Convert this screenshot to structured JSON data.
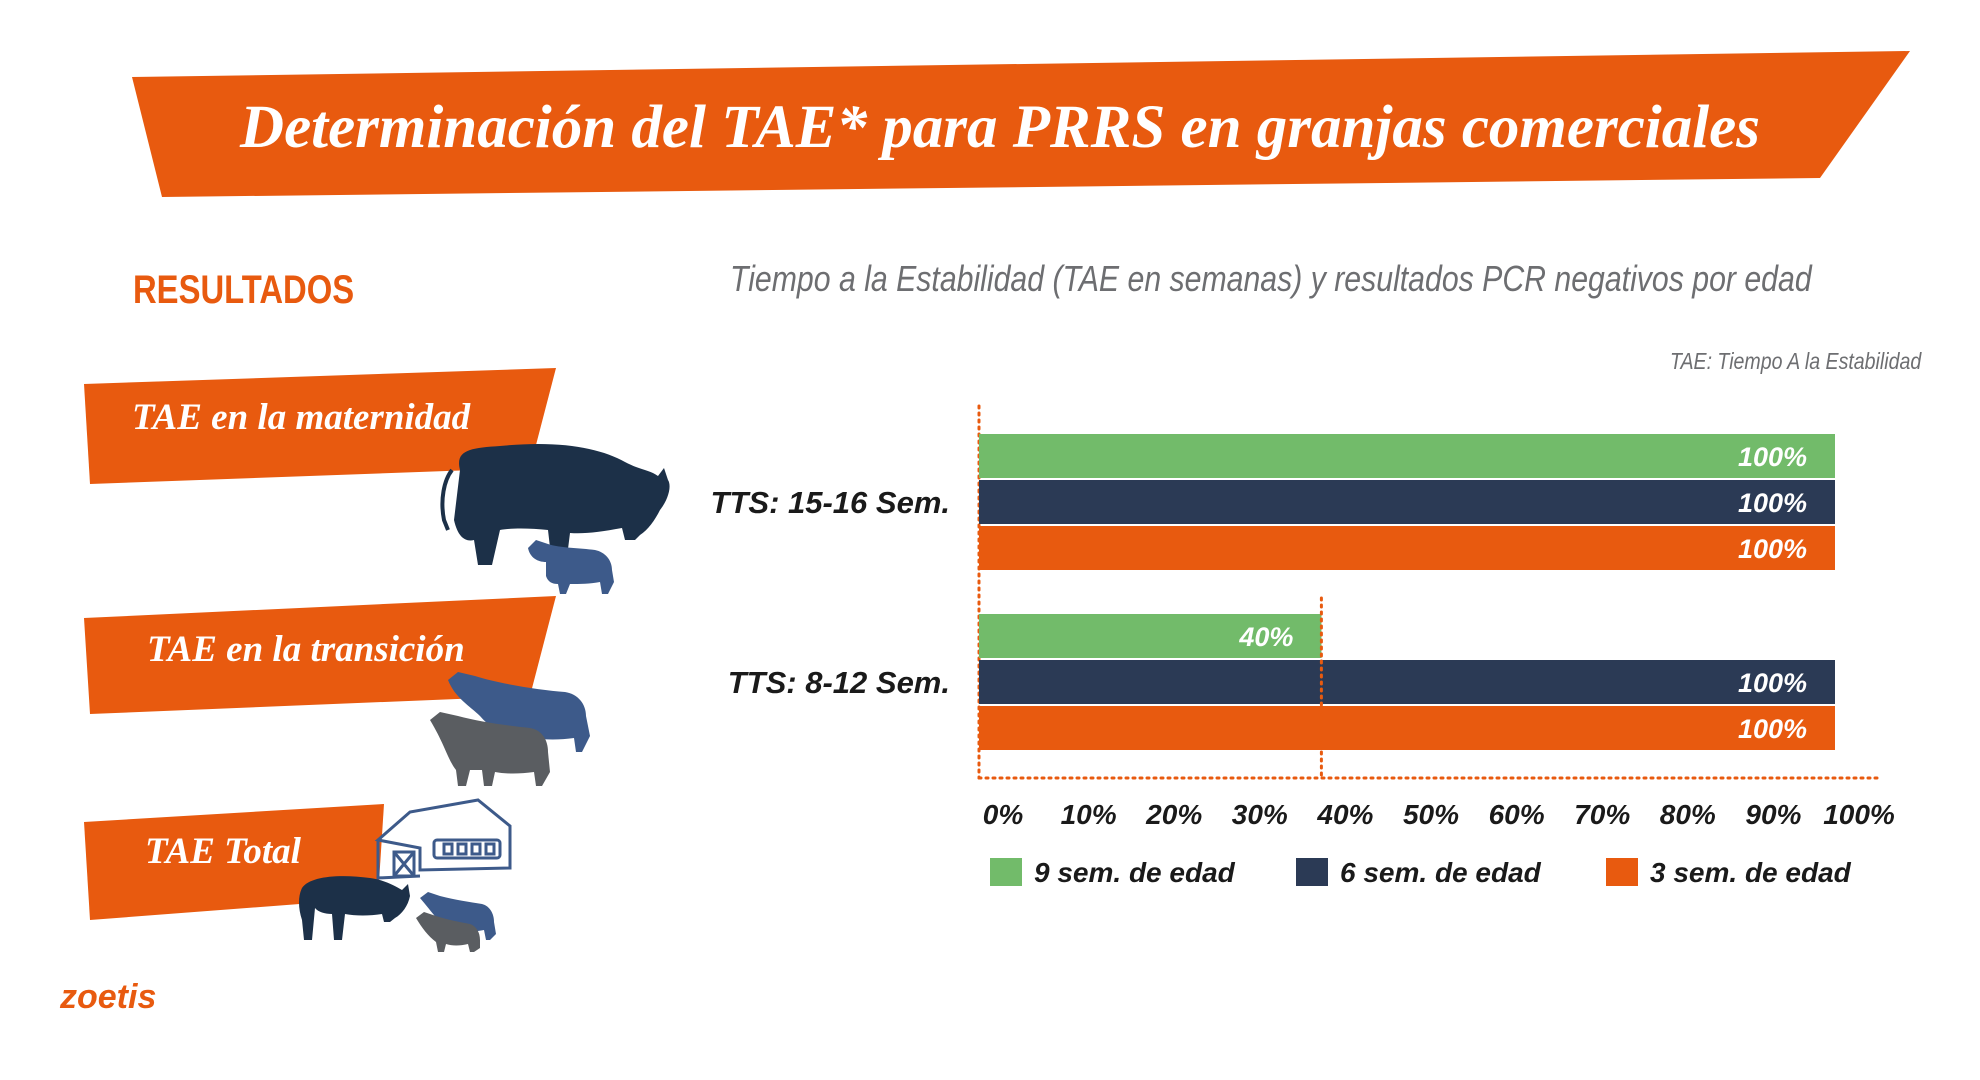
{
  "header": {
    "title": "Determinación del TAE*  para PRRS en granjas comerciales"
  },
  "left_panel": {
    "heading": "RESULTADOS",
    "labels": [
      "TAE en la maternidad",
      "TAE en la transición",
      "TAE Total"
    ]
  },
  "brand": {
    "logo_text": "zoetis"
  },
  "colors": {
    "accent": "#e85a0f",
    "navy": "#2b3a55",
    "green": "#72bb6a",
    "gray_text": "#6d6e71",
    "pig_dark": "#1c3048",
    "pig_mid": "#3d5a8a",
    "pig_gray": "#5a5d61"
  },
  "icons": [
    "sow-icon",
    "piglet-icon",
    "weaner-pigs-icon",
    "barn-icon",
    "pig-family-icon"
  ],
  "chart_data": {
    "type": "bar",
    "orientation": "horizontal",
    "title": "Tiempo a la Estabilidad (TAE en semanas) y resultados PCR negativos por edad",
    "note": "TAE: Tiempo A la Estabilidad",
    "categories": [
      "TTS: 15-16 Sem.",
      "TTS: 8-12 Sem."
    ],
    "series": [
      {
        "name": "9 sem. de edad",
        "color": "#72bb6a",
        "values": [
          100,
          40
        ],
        "labels": [
          "100%",
          "40%"
        ]
      },
      {
        "name": "6 sem. de edad",
        "color": "#2b3a55",
        "values": [
          100,
          100
        ],
        "labels": [
          "100%",
          "100%"
        ]
      },
      {
        "name": "3 sem. de edad",
        "color": "#e85a0f",
        "values": [
          100,
          100
        ],
        "labels": [
          "100%",
          "100%"
        ]
      }
    ],
    "xlim": [
      0,
      100
    ],
    "x_ticks": [
      "0%",
      "10%",
      "20%",
      "30%",
      "40%",
      "50%",
      "60%",
      "70%",
      "80%",
      "90%",
      "100%"
    ],
    "reference_line": 40,
    "legend_position": "bottom"
  }
}
